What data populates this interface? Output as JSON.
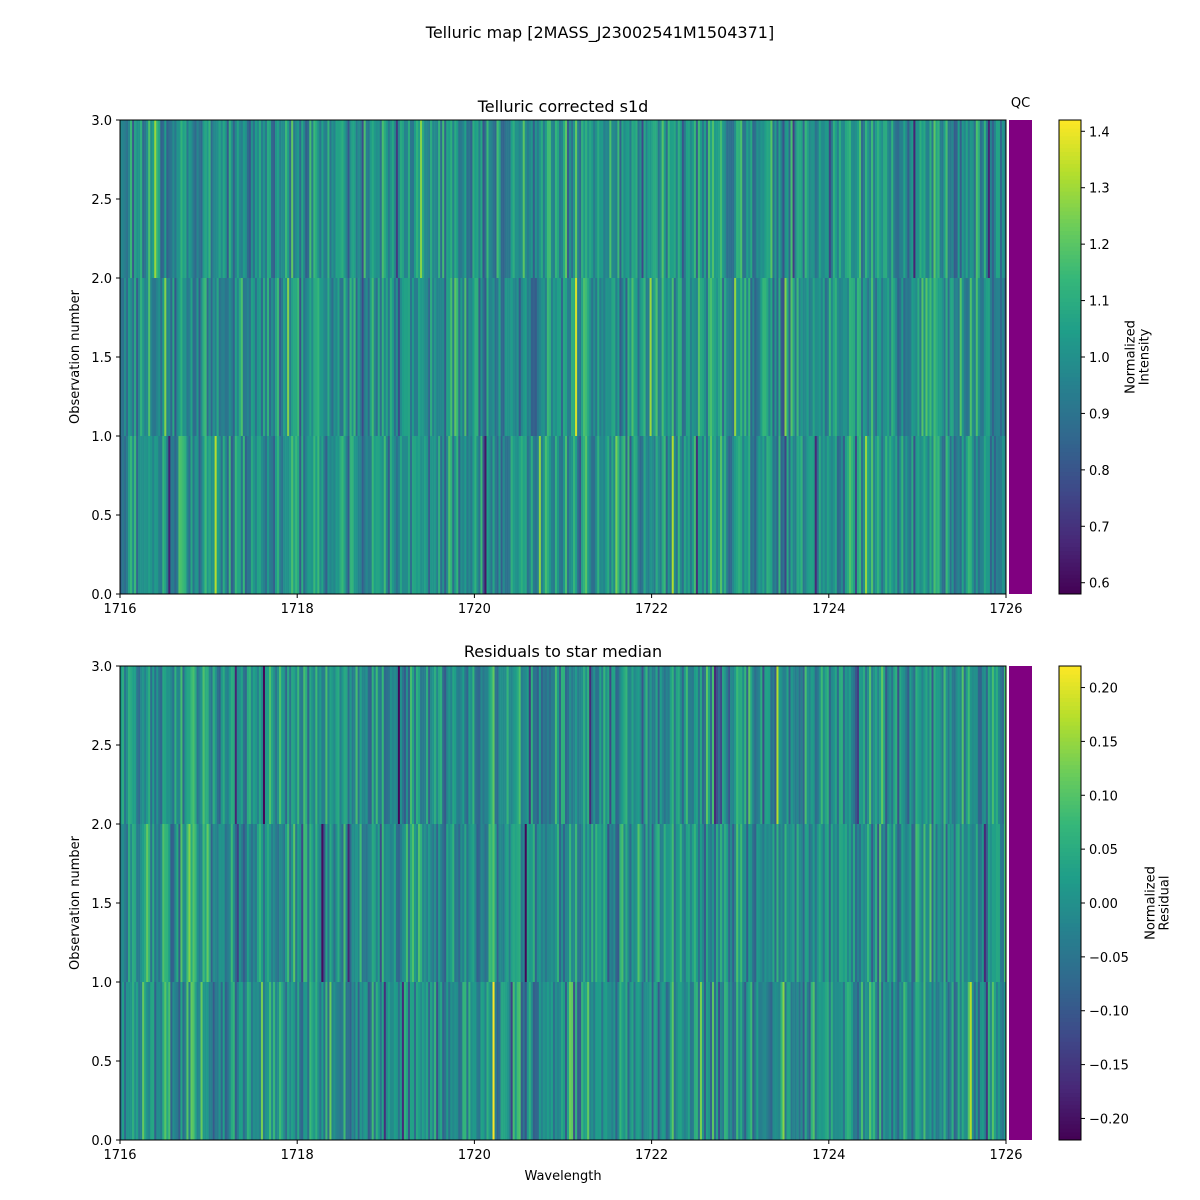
{
  "figure": {
    "title": "Telluric map [2MASS_J23002541M1504371]"
  },
  "chart_data": [
    {
      "type": "heatmap",
      "title": "Telluric corrected s1d",
      "xlabel": "",
      "ylabel": "Observation number",
      "xlim": [
        1716,
        1726
      ],
      "ylim": [
        0.0,
        3.0
      ],
      "xticks": [
        "1716",
        "1718",
        "1720",
        "1722",
        "1724",
        "1726"
      ],
      "yticks": [
        "0.0",
        "0.5",
        "1.0",
        "1.5",
        "2.0",
        "2.5",
        "3.0"
      ],
      "rows": [
        {
          "name": "observation 0",
          "y_range": [
            0,
            1
          ]
        },
        {
          "name": "observation 1",
          "y_range": [
            1,
            2
          ]
        },
        {
          "name": "observation 2",
          "y_range": [
            2,
            3
          ]
        }
      ],
      "colormap": "viridis",
      "value_range": [
        0.58,
        1.42
      ],
      "colorbar": {
        "label": "Normalized\nIntensity",
        "label_lines": [
          "Normalized",
          "Intensity"
        ],
        "ticks": [
          "0.6",
          "0.7",
          "0.8",
          "0.9",
          "1.0",
          "1.1",
          "1.2",
          "1.3",
          "1.4"
        ],
        "tick_values": [
          0.6,
          0.7,
          0.8,
          0.9,
          1.0,
          1.1,
          1.2,
          1.3,
          1.4
        ],
        "range": [
          0.58,
          1.42
        ]
      },
      "qc": {
        "label": "QC",
        "color": "#800080"
      }
    },
    {
      "type": "heatmap",
      "title": "Residuals to star median",
      "xlabel": "Wavelength",
      "ylabel": "Observation number",
      "xlim": [
        1716,
        1726
      ],
      "ylim": [
        0.0,
        3.0
      ],
      "xticks": [
        "1716",
        "1718",
        "1720",
        "1722",
        "1724",
        "1726"
      ],
      "yticks": [
        "0.0",
        "0.5",
        "1.0",
        "1.5",
        "2.0",
        "2.5",
        "3.0"
      ],
      "rows": [
        {
          "name": "observation 0",
          "y_range": [
            0,
            1
          ]
        },
        {
          "name": "observation 1",
          "y_range": [
            1,
            2
          ]
        },
        {
          "name": "observation 2",
          "y_range": [
            2,
            3
          ]
        }
      ],
      "colormap": "viridis",
      "value_range": [
        -0.22,
        0.22
      ],
      "colorbar": {
        "label": "Normalized\nResidual",
        "label_lines": [
          "Normalized",
          "Residual"
        ],
        "ticks": [
          "−0.20",
          "−0.15",
          "−0.10",
          "−0.05",
          "0.00",
          "0.05",
          "0.10",
          "0.15",
          "0.20"
        ],
        "tick_values": [
          -0.2,
          -0.15,
          -0.1,
          -0.05,
          0.0,
          0.05,
          0.1,
          0.15,
          0.2
        ],
        "range": [
          -0.22,
          0.22
        ]
      },
      "qc": {
        "label": "",
        "color": "#800080"
      }
    }
  ]
}
